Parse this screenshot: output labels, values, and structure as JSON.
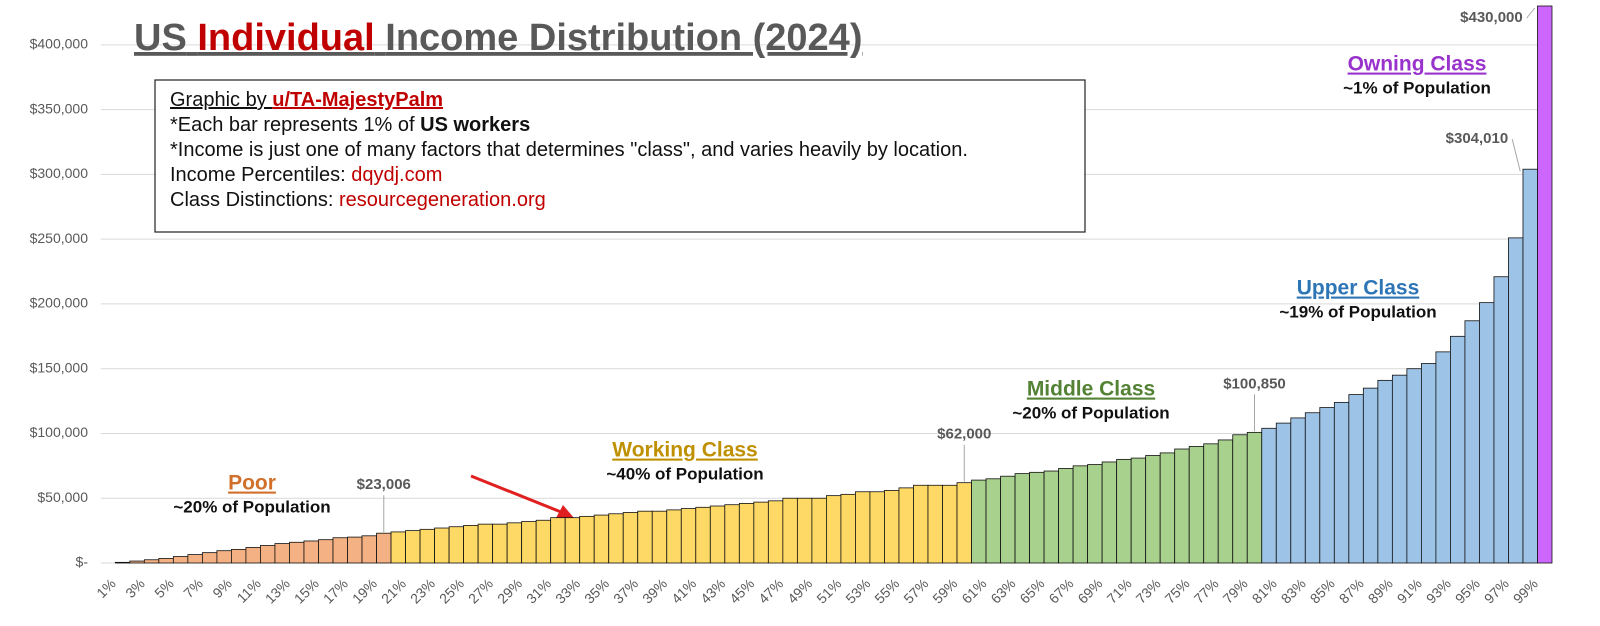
{
  "chart_data": {
    "type": "bar",
    "title": {
      "prefix": "US",
      "highlight": "Individual",
      "rest": "Income Distribution (2024)"
    },
    "notes": [
      {
        "text": "Graphic by ",
        "emph": "u/TA-MajestyPalm"
      },
      {
        "text": "*Each bar represents 1% of ",
        "emph": "US workers"
      },
      {
        "text": "*Income is just one of many factors that determines \"class\", and varies heavily by location."
      },
      {
        "text": "Income Percentiles: ",
        "emph": "dqydj.com"
      },
      {
        "text": "Class Distinctions: ",
        "emph": "resourcegeneration.org"
      }
    ],
    "classes": [
      {
        "name": "Poor",
        "share": "~20% of Population",
        "color": "#d0702a"
      },
      {
        "name": "Working Class",
        "share": "~40% of Population",
        "color": "#bf9000"
      },
      {
        "name": "Middle Class",
        "share": "~20% of Population",
        "color": "#548235"
      },
      {
        "name": "Upper Class",
        "share": "~19% of Population",
        "color": "#2e75b6"
      },
      {
        "name": "Owning Class",
        "share": "~1% of Population",
        "color": "#9933cc"
      }
    ],
    "categories": [
      "1%",
      null,
      "3%",
      null,
      "5%",
      null,
      "7%",
      null,
      "9%",
      null,
      "11%",
      null,
      "13%",
      null,
      "15%",
      null,
      "17%",
      null,
      "19%",
      null,
      "21%",
      null,
      "23%",
      null,
      "25%",
      null,
      "27%",
      null,
      "29%",
      null,
      "31%",
      null,
      "33%",
      null,
      "35%",
      null,
      "37%",
      null,
      "39%",
      null,
      "41%",
      null,
      "43%",
      null,
      "45%",
      null,
      "47%",
      null,
      "49%",
      null,
      "51%",
      null,
      "53%",
      null,
      "55%",
      null,
      "57%",
      null,
      "59%",
      null,
      "61%",
      null,
      "63%",
      null,
      "65%",
      null,
      "67%",
      null,
      "69%",
      null,
      "71%",
      null,
      "73%",
      null,
      "75%",
      null,
      "77%",
      null,
      "79%",
      null,
      "81%",
      null,
      "83%",
      null,
      "85%",
      null,
      "87%",
      null,
      "89%",
      null,
      "91%",
      null,
      "93%",
      null,
      "95%",
      null,
      "97%",
      null,
      "99%",
      null
    ],
    "values": [
      0,
      500,
      1500,
      2500,
      3500,
      5000,
      6500,
      8000,
      9500,
      10500,
      12000,
      13500,
      15000,
      16000,
      17000,
      18000,
      19500,
      20000,
      21000,
      23006,
      24000,
      25000,
      26000,
      27000,
      28000,
      29000,
      30000,
      30000,
      31000,
      32000,
      33000,
      35000,
      35000,
      36000,
      37000,
      38000,
      39000,
      40000,
      40000,
      41000,
      42000,
      43000,
      44000,
      45000,
      46000,
      47000,
      48000,
      50000,
      50000,
      50000,
      52000,
      53000,
      55000,
      55000,
      56000,
      58000,
      60000,
      60000,
      60000,
      62000,
      64000,
      65000,
      67000,
      69000,
      70000,
      71000,
      73000,
      75000,
      76000,
      78000,
      80000,
      81000,
      83000,
      85000,
      88000,
      90000,
      92000,
      95000,
      99000,
      100850,
      104000,
      108000,
      112000,
      116000,
      120000,
      124000,
      130000,
      135000,
      141000,
      145000,
      150000,
      154000,
      163000,
      175000,
      187000,
      201000,
      221000,
      251000,
      304010,
      430000
    ],
    "value_labels": [
      null,
      null,
      null,
      null,
      null,
      null,
      null,
      null,
      null,
      null,
      null,
      null,
      null,
      null,
      null,
      null,
      null,
      null,
      null,
      "$23,006",
      null,
      null,
      null,
      null,
      null,
      null,
      null,
      null,
      null,
      null,
      null,
      null,
      null,
      null,
      null,
      null,
      null,
      null,
      null,
      null,
      null,
      null,
      null,
      null,
      null,
      null,
      null,
      null,
      null,
      null,
      null,
      null,
      null,
      null,
      null,
      null,
      null,
      null,
      null,
      "$62,000",
      null,
      null,
      null,
      null,
      null,
      null,
      null,
      null,
      null,
      null,
      null,
      null,
      null,
      null,
      null,
      null,
      null,
      null,
      null,
      "$100,850",
      null,
      null,
      null,
      null,
      null,
      null,
      null,
      null,
      null,
      null,
      null,
      null,
      null,
      null,
      null,
      null,
      null,
      null,
      "$304,010",
      "$430,000"
    ],
    "colors": [
      "#f4b183",
      "#f4b183",
      "#f4b183",
      "#f4b183",
      "#f4b183",
      "#f4b183",
      "#f4b183",
      "#f4b183",
      "#f4b183",
      "#f4b183",
      "#f4b183",
      "#f4b183",
      "#f4b183",
      "#f4b183",
      "#f4b183",
      "#f4b183",
      "#f4b183",
      "#f4b183",
      "#f4b183",
      "#f4b183",
      "#ffd966",
      "#ffd966",
      "#ffd966",
      "#ffd966",
      "#ffd966",
      "#ffd966",
      "#ffd966",
      "#ffd966",
      "#ffd966",
      "#ffd966",
      "#ffd966",
      "#ffd966",
      "#ffd966",
      "#ffd966",
      "#ffd966",
      "#ffd966",
      "#ffd966",
      "#ffd966",
      "#ffd966",
      "#ffd966",
      "#ffd966",
      "#ffd966",
      "#ffd966",
      "#ffd966",
      "#ffd966",
      "#ffd966",
      "#ffd966",
      "#ffd966",
      "#ffd966",
      "#ffd966",
      "#ffd966",
      "#ffd966",
      "#ffd966",
      "#ffd966",
      "#ffd966",
      "#ffd966",
      "#ffd966",
      "#ffd966",
      "#ffd966",
      "#ffd966",
      "#a9d18e",
      "#a9d18e",
      "#a9d18e",
      "#a9d18e",
      "#a9d18e",
      "#a9d18e",
      "#a9d18e",
      "#a9d18e",
      "#a9d18e",
      "#a9d18e",
      "#a9d18e",
      "#a9d18e",
      "#a9d18e",
      "#a9d18e",
      "#a9d18e",
      "#a9d18e",
      "#a9d18e",
      "#a9d18e",
      "#a9d18e",
      "#a9d18e",
      "#9dc3e6",
      "#9dc3e6",
      "#9dc3e6",
      "#9dc3e6",
      "#9dc3e6",
      "#9dc3e6",
      "#9dc3e6",
      "#9dc3e6",
      "#9dc3e6",
      "#9dc3e6",
      "#9dc3e6",
      "#9dc3e6",
      "#9dc3e6",
      "#9dc3e6",
      "#9dc3e6",
      "#9dc3e6",
      "#9dc3e6",
      "#9dc3e6",
      "#9dc3e6",
      "#cc66ff"
    ],
    "ylim": [
      0,
      430000
    ],
    "yticks": [
      {
        "value": 0,
        "label": "$-"
      },
      {
        "value": 50000,
        "label": "$50,000"
      },
      {
        "value": 100000,
        "label": "$100,000"
      },
      {
        "value": 150000,
        "label": "$150,000"
      },
      {
        "value": 200000,
        "label": "$200,000"
      },
      {
        "value": 250000,
        "label": "$250,000"
      },
      {
        "value": 300000,
        "label": "$300,000"
      },
      {
        "value": 350000,
        "label": "$350,000"
      },
      {
        "value": 400000,
        "label": "$400,000"
      }
    ],
    "grid": true
  }
}
